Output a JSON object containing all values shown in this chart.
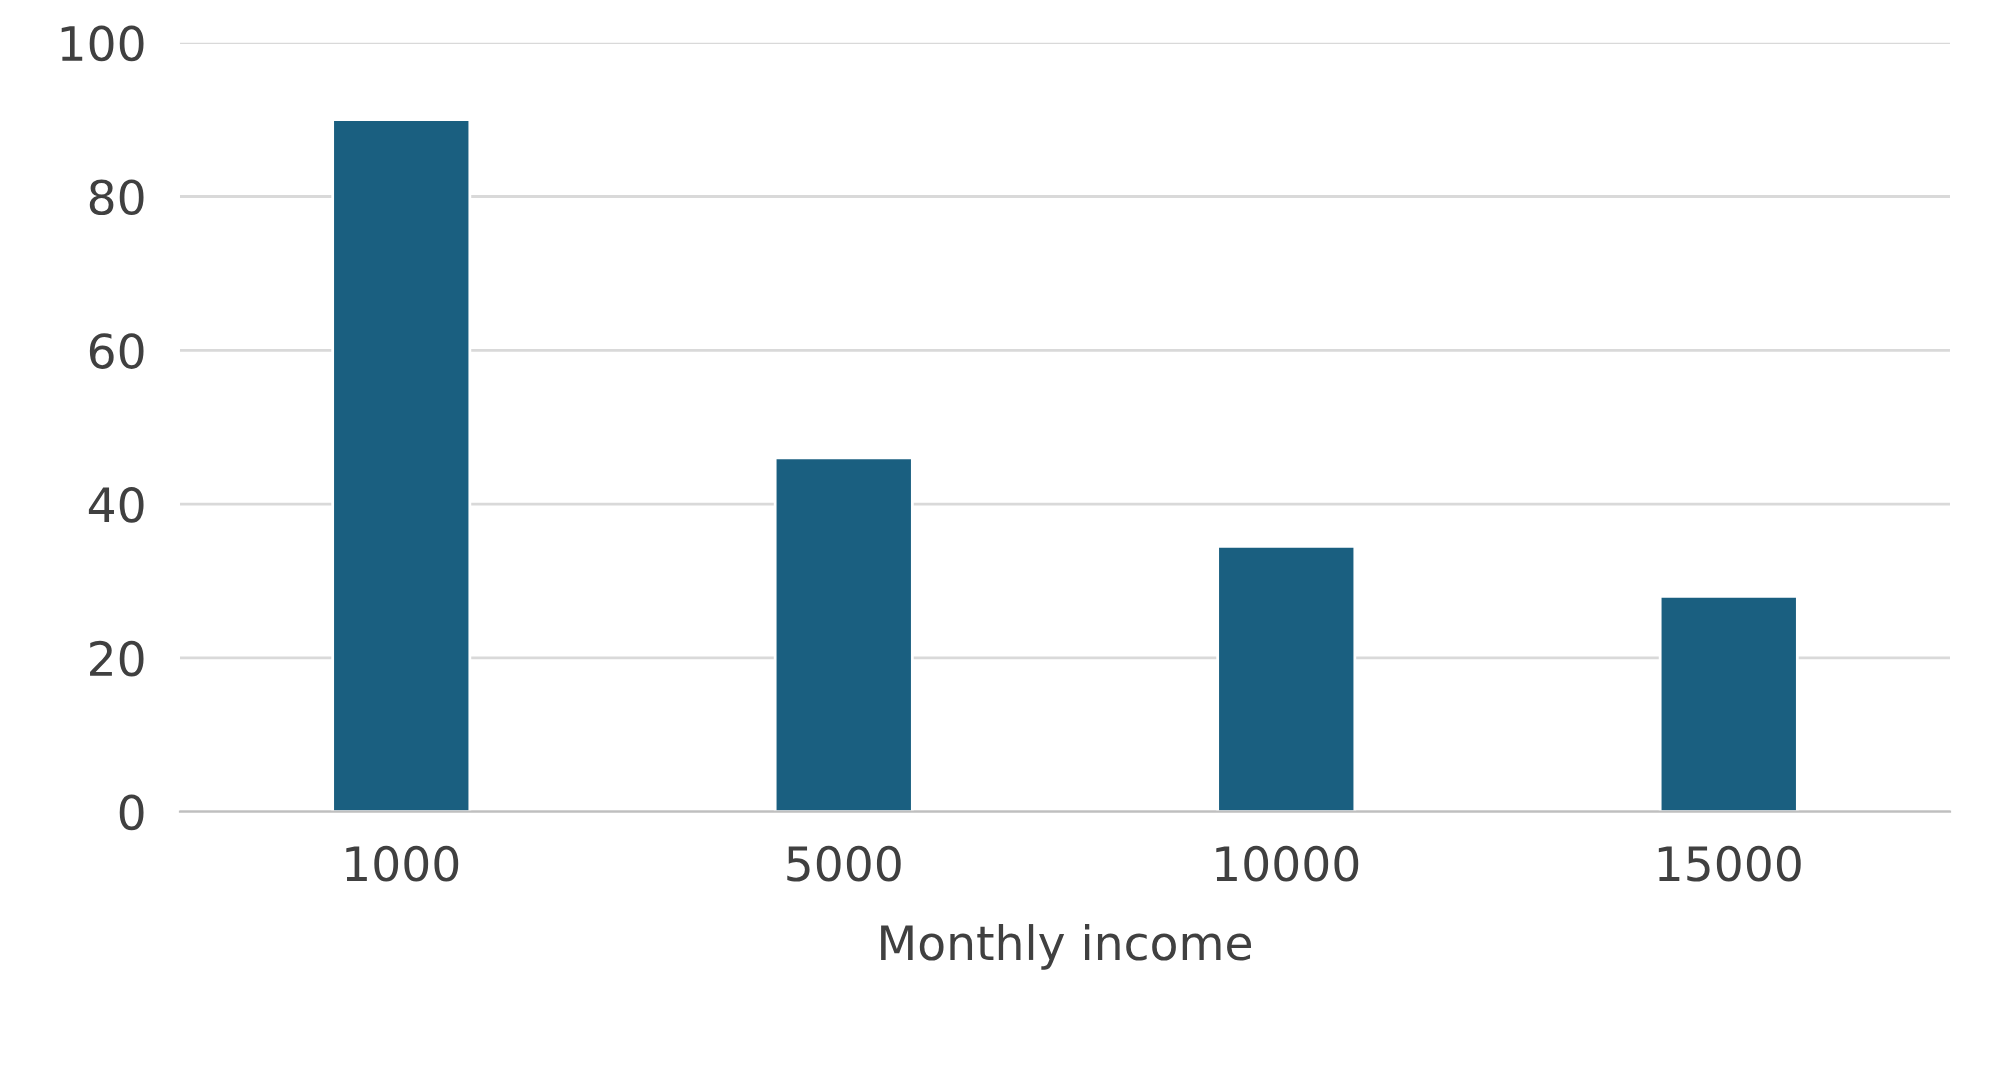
{
  "chart_data": {
    "type": "bar",
    "xlabel": "Monthly income",
    "categories": [
      "1000",
      "5000",
      "10000",
      "15000"
    ],
    "values": [
      90,
      46,
      34.5,
      28
    ],
    "color": "#1a5f80",
    "ylim": [
      0,
      100
    ],
    "yticks": [
      0,
      20,
      40,
      60,
      80,
      100
    ],
    "grid": "y"
  }
}
